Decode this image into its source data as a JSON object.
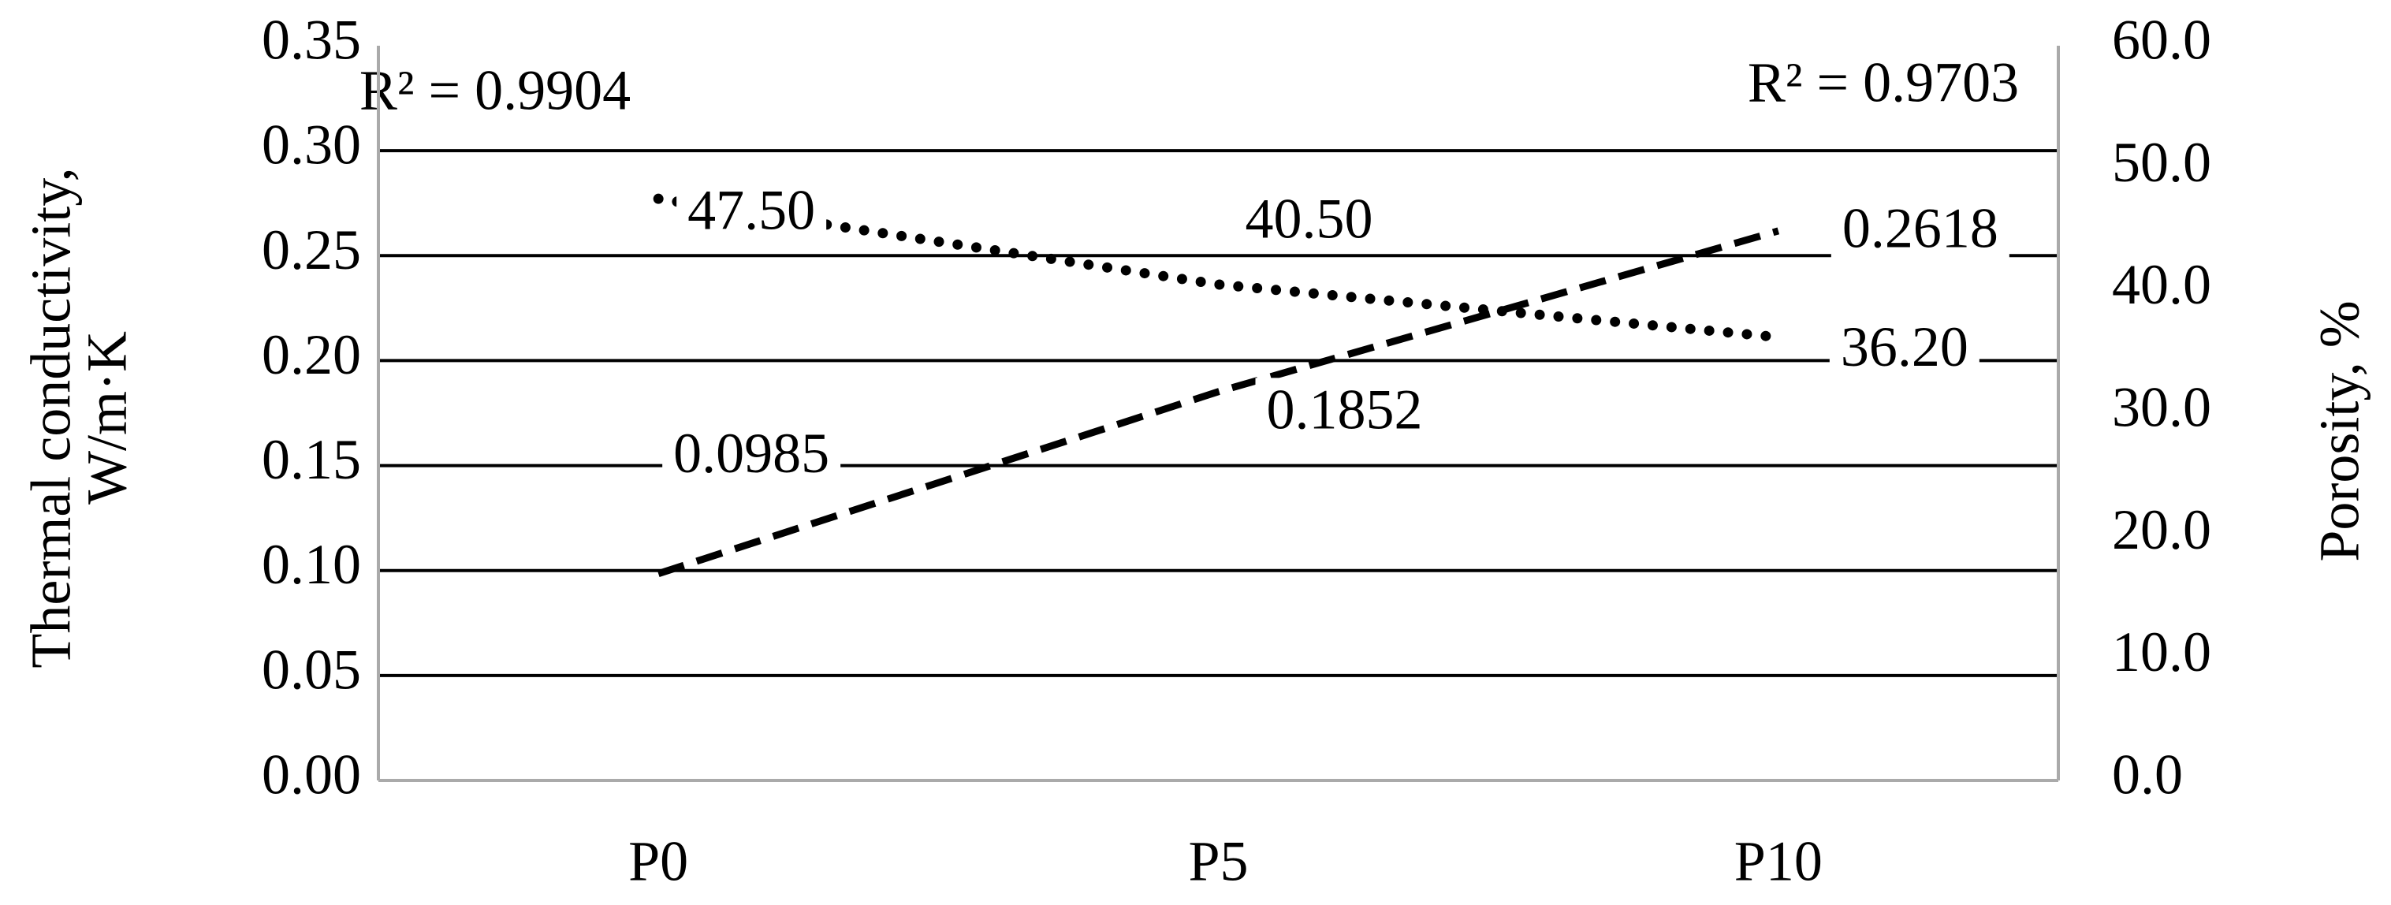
{
  "chart_data": {
    "type": "line",
    "categories": [
      "P0",
      "P5",
      "P10"
    ],
    "ylabel": [
      "Thermal conductivity,",
      "W/m·K"
    ],
    "y2label": "Porosity, %",
    "ylim": [
      0,
      0.35
    ],
    "yticks": [
      {
        "value": 0,
        "label": "0.00"
      },
      {
        "value": 0.05,
        "label": "0.05"
      },
      {
        "value": 0.1,
        "label": "0.10"
      },
      {
        "value": 0.15,
        "label": "0.15"
      },
      {
        "value": 0.2,
        "label": "0.20"
      },
      {
        "value": 0.25,
        "label": "0.25"
      },
      {
        "value": 0.3,
        "label": "0.30"
      },
      {
        "value": 0.35,
        "label": "0.35"
      }
    ],
    "y2lim": [
      0,
      60
    ],
    "y2ticks": [
      {
        "value": 0,
        "label": "0.0"
      },
      {
        "value": 10,
        "label": "10.0"
      },
      {
        "value": 20,
        "label": "20.0"
      },
      {
        "value": 30,
        "label": "30.0"
      },
      {
        "value": 40,
        "label": "40.0"
      },
      {
        "value": 50,
        "label": "50.0"
      },
      {
        "value": 60,
        "label": "60.0"
      }
    ],
    "grid": true,
    "series": [
      {
        "color": "#000000",
        "style": "dashed",
        "values": [
          0.0985,
          0.1852,
          0.2618
        ]
      },
      {
        "color": "#000000",
        "style": "dotted",
        "axis": "y2",
        "values": [
          47.5,
          40.5,
          36.2
        ],
        "value_labels": [
          "47.50",
          "40.50",
          "36.20"
        ]
      }
    ],
    "annotations": [
      "R² = 0.9904",
      "R² = 0.9703"
    ]
  }
}
